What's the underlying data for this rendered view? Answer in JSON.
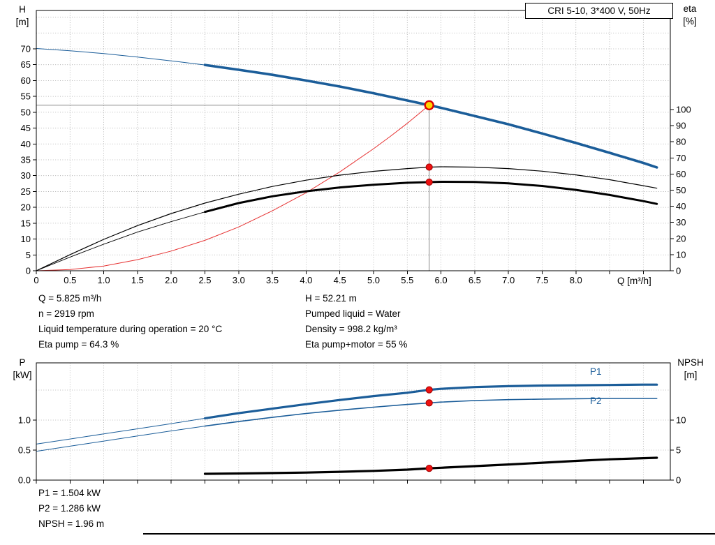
{
  "title_box": "CRI 5-10, 3*400 V, 50Hz",
  "labels": {
    "h_axis_1": "H",
    "h_axis_2": "[m]",
    "eta_axis_1": "eta",
    "eta_axis_2": "[%]",
    "q_axis": "Q [m³/h]",
    "p_axis_1": "P",
    "p_axis_2": "[kW]",
    "npsh_axis_1": "NPSH",
    "npsh_axis_2": "[m]",
    "p1": "P1",
    "p2": "P2"
  },
  "annotations": {
    "q": "Q = 5.825 m³/h",
    "n": "n = 2919 rpm",
    "temp": "Liquid temperature during operation = 20 °C",
    "eta_pump": "Eta pump = 64.3 %",
    "h": "H = 52.21 m",
    "liquid": "Pumped liquid = Water",
    "density": "Density = 998.2 kg/m³",
    "eta_pm": "Eta pump+motor = 55 %",
    "p1": "P1 = 1.504 kW",
    "p2": "P2 = 1.286 kW",
    "npsh": "NPSH = 1.96 m"
  },
  "colors": {
    "curve_blue": "#1b5d99",
    "curve_red": "#e63232",
    "curve_black": "#000000",
    "dot_red": "#ee1111",
    "dot_ring": "#a00000",
    "duty_fill": "#ffd400",
    "duty_ring": "#dd0000",
    "grid": "#a8a8a8",
    "guide": "#888888",
    "frame": "#000000"
  },
  "chart_data": [
    {
      "id": "qh-eta-chart",
      "type": "line",
      "title": "CRI 5-10, 3*400 V, 50Hz",
      "x_axis": {
        "label": "Q [m³/h]",
        "min": 0,
        "max": 9.4,
        "tick_step": 0.5,
        "grid_step": 0.5,
        "tick_labels": [
          "0",
          "0.5",
          "1.0",
          "1.5",
          "2.0",
          "2.5",
          "3.0",
          "3.5",
          "4.0",
          "4.5",
          "5.0",
          "5.5",
          "6.0",
          "6.5",
          "7.0",
          "7.5",
          "8.0"
        ]
      },
      "y_left": {
        "label": "H [m]",
        "min": 0,
        "max": 82.1,
        "grid_step": 5,
        "ticks": [
          0,
          5,
          10,
          15,
          20,
          25,
          30,
          35,
          40,
          45,
          50,
          55,
          60,
          65,
          70
        ],
        "tick_labels": [
          "0",
          "5",
          "10",
          "15",
          "20",
          "25",
          "30",
          "35",
          "40",
          "45",
          "50",
          "55",
          "60",
          "65",
          "70"
        ]
      },
      "y_right": {
        "label": "eta [%]",
        "min": 0,
        "max": 161.5,
        "ticks": [
          0,
          10,
          20,
          30,
          40,
          50,
          60,
          70,
          80,
          90,
          100
        ],
        "tick_labels": [
          "0",
          "10",
          "20",
          "30",
          "40",
          "50",
          "60",
          "70",
          "80",
          "90",
          "100"
        ]
      },
      "duty_point": {
        "q": 5.825,
        "h": 52.21
      },
      "series": [
        {
          "name": "head-curve-extension",
          "axis": "left",
          "color_key": "curve_blue",
          "width": 1,
          "points": [
            [
              0,
              70.1
            ],
            [
              0.5,
              69.4
            ],
            [
              1,
              68.5
            ],
            [
              1.5,
              67.4
            ],
            [
              2,
              66.2
            ],
            [
              2.5,
              64.9
            ]
          ]
        },
        {
          "name": "head-curve",
          "axis": "left",
          "color_key": "curve_blue",
          "width": 3.6,
          "points": [
            [
              2.5,
              64.9
            ],
            [
              3,
              63.4
            ],
            [
              3.5,
              61.8
            ],
            [
              4,
              60.0
            ],
            [
              4.5,
              58.1
            ],
            [
              5,
              56.0
            ],
            [
              5.5,
              53.7
            ],
            [
              5.825,
              52.21
            ],
            [
              6,
              51.4
            ],
            [
              6.5,
              48.8
            ],
            [
              7,
              46.2
            ],
            [
              7.5,
              43.3
            ],
            [
              8,
              40.3
            ],
            [
              8.5,
              37.2
            ],
            [
              9,
              34.0
            ],
            [
              9.2,
              32.6
            ]
          ]
        },
        {
          "name": "system-curve",
          "axis": "left",
          "color_key": "curve_red",
          "width": 1,
          "points": [
            [
              0,
              0
            ],
            [
              0.5,
              0.4
            ],
            [
              1,
              1.5
            ],
            [
              1.5,
              3.5
            ],
            [
              2,
              6.2
            ],
            [
              2.5,
              9.6
            ],
            [
              3,
              13.8
            ],
            [
              3.5,
              18.9
            ],
            [
              4,
              24.6
            ],
            [
              4.5,
              31.2
            ],
            [
              5,
              38.5
            ],
            [
              5.25,
              42.4
            ],
            [
              5.5,
              46.5
            ],
            [
              5.75,
              50.9
            ],
            [
              5.825,
              52.21
            ]
          ]
        },
        {
          "name": "eta-pump-curve",
          "axis": "right",
          "color_key": "curve_black",
          "width": 1.2,
          "points": [
            [
              0,
              0
            ],
            [
              0.5,
              10
            ],
            [
              1,
              19.5
            ],
            [
              1.5,
              28
            ],
            [
              2,
              35.5
            ],
            [
              2.5,
              42
            ],
            [
              3,
              47.5
            ],
            [
              3.5,
              52.3
            ],
            [
              4,
              56.2
            ],
            [
              4.5,
              59.3
            ],
            [
              5,
              61.7
            ],
            [
              5.5,
              63.4
            ],
            [
              5.825,
              64.3
            ],
            [
              6,
              64.5
            ],
            [
              6.5,
              64.3
            ],
            [
              7,
              63.4
            ],
            [
              7.5,
              61.8
            ],
            [
              8,
              59.5
            ],
            [
              8.5,
              56.5
            ],
            [
              9,
              52.8
            ],
            [
              9.2,
              51.2
            ]
          ]
        },
        {
          "name": "eta-pump-motor-extension",
          "axis": "right",
          "color_key": "curve_black",
          "width": 0.9,
          "points": [
            [
              0,
              0
            ],
            [
              0.5,
              8.5
            ],
            [
              1,
              16.5
            ],
            [
              1.5,
              24
            ],
            [
              2,
              30.5
            ],
            [
              2.5,
              36.5
            ]
          ]
        },
        {
          "name": "eta-pump-motor-curve",
          "axis": "right",
          "color_key": "curve_black",
          "width": 3,
          "points": [
            [
              2.5,
              36.5
            ],
            [
              3,
              42
            ],
            [
              3.5,
              46.2
            ],
            [
              4,
              49.3
            ],
            [
              4.5,
              51.7
            ],
            [
              5,
              53.4
            ],
            [
              5.5,
              54.6
            ],
            [
              5.825,
              55.0
            ],
            [
              6,
              55.2
            ],
            [
              6.5,
              55.1
            ],
            [
              7,
              54.2
            ],
            [
              7.5,
              52.6
            ],
            [
              8,
              50.2
            ],
            [
              8.5,
              47.0
            ],
            [
              9,
              43.2
            ],
            [
              9.2,
              41.5
            ]
          ]
        }
      ],
      "markers": [
        {
          "q": 5.825,
          "value": 52.21,
          "axis": "left",
          "kind": "duty",
          "name": "duty-point-marker"
        },
        {
          "q": 5.825,
          "value": 64.3,
          "axis": "right",
          "kind": "dot",
          "name": "eta-pump-marker"
        },
        {
          "q": 5.825,
          "value": 55.0,
          "axis": "right",
          "kind": "dot",
          "name": "eta-pump-motor-marker"
        }
      ]
    },
    {
      "id": "power-npsh-chart",
      "type": "line",
      "x_axis": {
        "label": "",
        "min": 0,
        "max": 9.4,
        "tick_step": 0.5,
        "grid_step": 0.5,
        "tick_labels": []
      },
      "y_left": {
        "label": "P [kW]",
        "min": 0,
        "max": 1.953,
        "grid_step": 0.5,
        "ticks": [
          0,
          0.5,
          1
        ],
        "tick_labels": [
          "0.0",
          "0.5",
          "1.0"
        ]
      },
      "y_right": {
        "label": "NPSH [m]",
        "min": 0,
        "max": 19.53,
        "ticks": [
          0,
          5,
          10
        ],
        "tick_labels": [
          "0",
          "5",
          "10"
        ]
      },
      "series": [
        {
          "name": "p1-curve-extension",
          "axis": "left",
          "color_key": "curve_blue",
          "width": 1,
          "points": [
            [
              0,
              0.6
            ],
            [
              0.5,
              0.685
            ],
            [
              1,
              0.77
            ],
            [
              1.5,
              0.855
            ],
            [
              2,
              0.94
            ],
            [
              2.5,
              1.03
            ]
          ]
        },
        {
          "name": "p1-curve",
          "axis": "left",
          "color_key": "curve_blue",
          "width": 3.2,
          "points": [
            [
              2.5,
              1.03
            ],
            [
              3,
              1.115
            ],
            [
              3.5,
              1.19
            ],
            [
              4,
              1.265
            ],
            [
              4.5,
              1.335
            ],
            [
              5,
              1.4
            ],
            [
              5.5,
              1.455
            ],
            [
              5.825,
              1.504
            ],
            [
              6,
              1.52
            ],
            [
              6.5,
              1.55
            ],
            [
              7,
              1.565
            ],
            [
              7.5,
              1.575
            ],
            [
              8,
              1.58
            ],
            [
              8.5,
              1.585
            ],
            [
              9,
              1.59
            ],
            [
              9.2,
              1.59
            ]
          ]
        },
        {
          "name": "p2-curve-extension",
          "axis": "left",
          "color_key": "curve_blue",
          "width": 1,
          "points": [
            [
              0,
              0.48
            ],
            [
              0.5,
              0.565
            ],
            [
              1,
              0.65
            ],
            [
              1.5,
              0.735
            ],
            [
              2,
              0.82
            ],
            [
              2.5,
              0.9
            ]
          ]
        },
        {
          "name": "p2-curve",
          "axis": "left",
          "color_key": "curve_blue",
          "width": 1.6,
          "points": [
            [
              2.5,
              0.9
            ],
            [
              3,
              0.975
            ],
            [
              3.5,
              1.045
            ],
            [
              4,
              1.11
            ],
            [
              4.5,
              1.165
            ],
            [
              5,
              1.215
            ],
            [
              5.5,
              1.26
            ],
            [
              5.825,
              1.286
            ],
            [
              6,
              1.3
            ],
            [
              6.5,
              1.325
            ],
            [
              7,
              1.34
            ],
            [
              7.5,
              1.35
            ],
            [
              8,
              1.355
            ],
            [
              8.5,
              1.36
            ],
            [
              9,
              1.36
            ],
            [
              9.2,
              1.36
            ]
          ]
        },
        {
          "name": "npsh-curve",
          "axis": "right",
          "color_key": "curve_black",
          "width": 3.2,
          "points": [
            [
              2.5,
              1.05
            ],
            [
              3,
              1.1
            ],
            [
              3.5,
              1.17
            ],
            [
              4,
              1.26
            ],
            [
              4.5,
              1.38
            ],
            [
              5,
              1.53
            ],
            [
              5.5,
              1.74
            ],
            [
              5.825,
              1.96
            ],
            [
              6,
              2.06
            ],
            [
              6.5,
              2.32
            ],
            [
              7,
              2.6
            ],
            [
              7.5,
              2.9
            ],
            [
              8,
              3.2
            ],
            [
              8.5,
              3.46
            ],
            [
              9,
              3.65
            ],
            [
              9.2,
              3.72
            ]
          ]
        }
      ],
      "markers": [
        {
          "q": 5.825,
          "value": 1.504,
          "axis": "left",
          "kind": "dot",
          "name": "p1-marker"
        },
        {
          "q": 5.825,
          "value": 1.286,
          "axis": "left",
          "kind": "dot",
          "name": "p2-marker"
        },
        {
          "q": 5.825,
          "value": 1.96,
          "axis": "right",
          "kind": "dot",
          "name": "npsh-marker"
        }
      ]
    }
  ]
}
